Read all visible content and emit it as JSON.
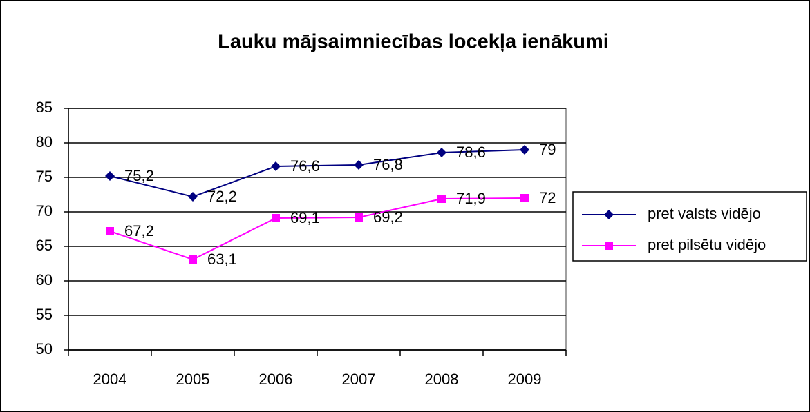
{
  "chart_data": {
    "type": "line",
    "title": "Lauku mājsaimniecības locekļa ienākumi",
    "categories": [
      "2004",
      "2005",
      "2006",
      "2007",
      "2008",
      "2009"
    ],
    "series": [
      {
        "name": "pret valsts vidējo",
        "color": "#000080",
        "marker": "diamond",
        "values": [
          75.2,
          72.2,
          76.6,
          76.8,
          78.6,
          79
        ],
        "value_labels": [
          "75,2",
          "72,2",
          "76,6",
          "76,8",
          "78,6",
          "79"
        ]
      },
      {
        "name": "pret pilsētu vidējo",
        "color": "#ff00ff",
        "marker": "square",
        "values": [
          67.2,
          63.1,
          69.1,
          69.2,
          71.9,
          72
        ],
        "value_labels": [
          "67,2",
          "63,1",
          "69,1",
          "69,2",
          "71,9",
          "72"
        ]
      }
    ],
    "ylim": [
      50,
      85
    ],
    "yticks": [
      50,
      55,
      60,
      65,
      70,
      75,
      80,
      85
    ],
    "grid": true,
    "legend": "right"
  }
}
